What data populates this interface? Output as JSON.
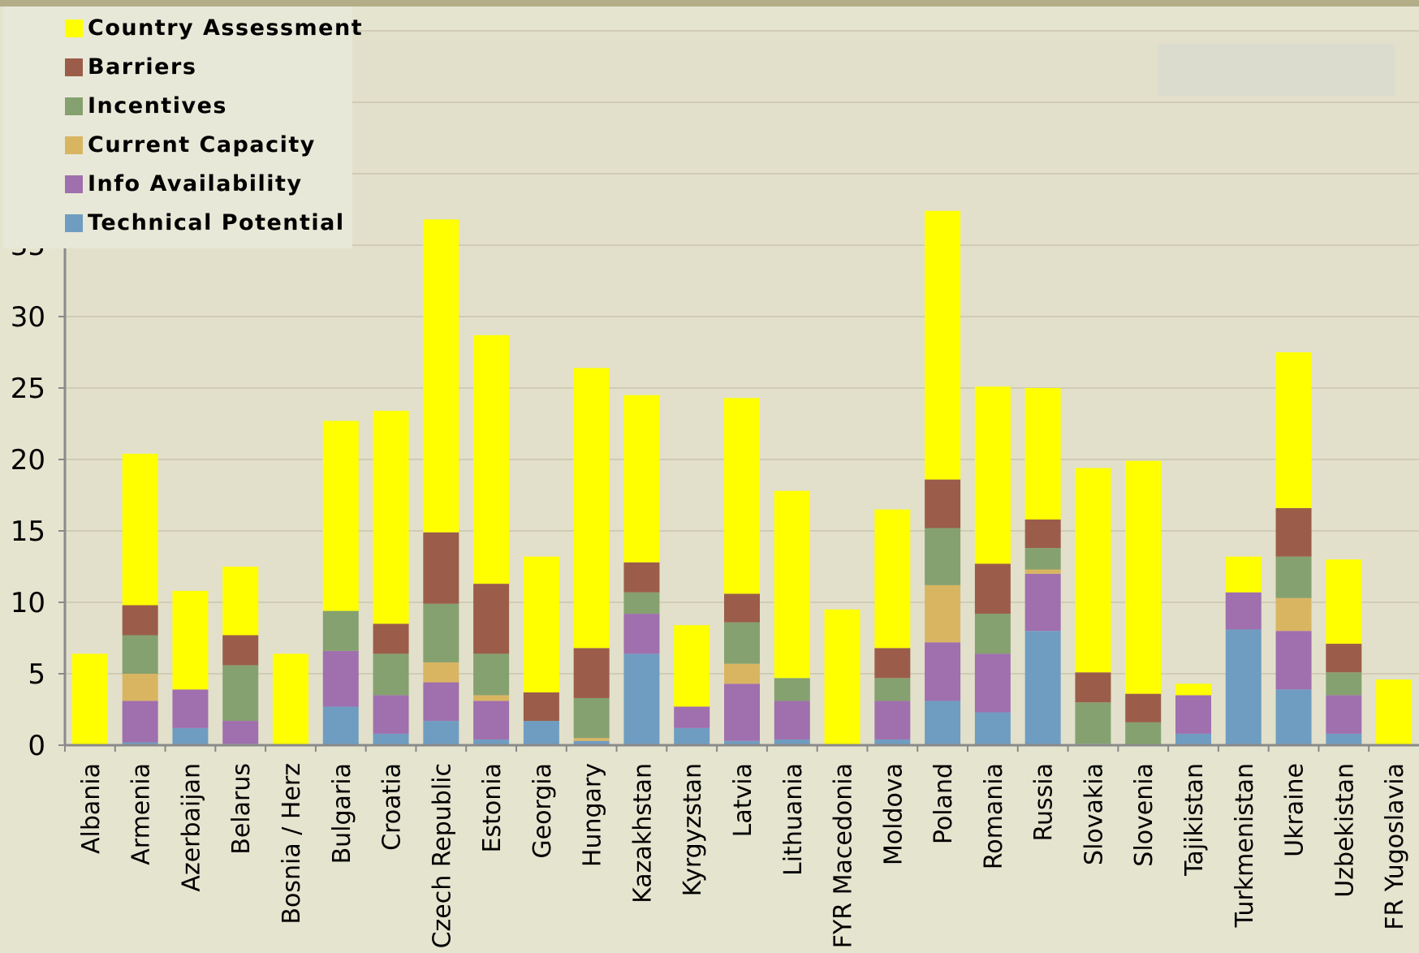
{
  "chart_data": {
    "type": "bar",
    "stacked": true,
    "categories": [
      "Albania",
      "Armenia",
      "Azerbaijan",
      "Belarus",
      "Bosnia / Herz",
      "Bulgaria",
      "Croatia",
      "Czech Republic",
      "Estonia",
      "Georgia",
      "Hungary",
      "Kazakhstan",
      "Kyrgyzstan",
      "Latvia",
      "Lithuania",
      "FYR Macedonia",
      "Moldova",
      "Poland",
      "Romania",
      "Russia",
      "Slovakia",
      "Slovenia",
      "Tajikistan",
      "Turkmenistan",
      "Ukraine",
      "Uzbekistan",
      "FR Yugoslavia"
    ],
    "series": [
      {
        "name": "Technical Potential",
        "color": "#6f9dc1",
        "values": [
          0,
          0.2,
          1.2,
          0.1,
          0,
          2.7,
          0.8,
          1.7,
          0.4,
          1.7,
          0.3,
          6.4,
          1.2,
          0.3,
          0.4,
          0,
          0.4,
          3.1,
          2.3,
          8.0,
          0.1,
          0,
          0.8,
          8.1,
          3.9,
          0.8,
          0
        ]
      },
      {
        "name": "Info Availability",
        "color": "#a06fae",
        "values": [
          0,
          2.9,
          2.7,
          1.6,
          0,
          3.9,
          2.7,
          2.7,
          2.7,
          0,
          0,
          2.8,
          1.5,
          4.0,
          2.7,
          0,
          2.7,
          4.1,
          4.1,
          4.0,
          0,
          0,
          2.7,
          2.6,
          4.1,
          2.7,
          0
        ]
      },
      {
        "name": "Current Capacity",
        "color": "#d9b562",
        "values": [
          0,
          1.9,
          0,
          0,
          0,
          0,
          0,
          1.4,
          0.4,
          0,
          0.2,
          0,
          0,
          1.4,
          0,
          0,
          0,
          4.0,
          0,
          0.3,
          0,
          0,
          0,
          0,
          2.3,
          0,
          0
        ]
      },
      {
        "name": "Incentives",
        "color": "#85a16f",
        "values": [
          0,
          2.7,
          0,
          3.9,
          0,
          2.8,
          2.9,
          4.1,
          2.9,
          0,
          2.8,
          1.5,
          0,
          2.9,
          1.6,
          0,
          1.6,
          4.0,
          2.8,
          1.5,
          2.9,
          1.6,
          0,
          0,
          2.9,
          1.6,
          0
        ]
      },
      {
        "name": "Barriers",
        "color": "#9b5d49",
        "values": [
          0,
          2.1,
          0,
          2.1,
          0,
          0,
          2.1,
          5.0,
          4.9,
          2.0,
          3.5,
          2.1,
          0,
          2.0,
          0,
          0,
          2.1,
          3.4,
          3.5,
          2.0,
          2.1,
          2.0,
          0,
          0,
          3.4,
          2.0,
          0
        ]
      },
      {
        "name": "Country Assessment",
        "color": "#ffff00",
        "values": [
          6.4,
          10.6,
          6.9,
          4.8,
          6.4,
          13.3,
          14.9,
          21.9,
          17.4,
          9.5,
          19.6,
          11.7,
          5.7,
          13.7,
          13.1,
          9.5,
          9.7,
          18.8,
          12.4,
          9.2,
          14.3,
          16.3,
          0.8,
          2.5,
          10.9,
          5.9,
          4.6
        ]
      }
    ],
    "title": "",
    "xlabel": "",
    "ylabel": "",
    "ylim": [
      0,
      50
    ],
    "yticks": [
      0,
      5,
      10,
      15,
      20,
      25,
      30,
      35,
      40,
      45,
      50
    ],
    "grid": true,
    "legend_position": "top-left",
    "legend_order": [
      "Country Assessment",
      "Barriers",
      "Incentives",
      "Current Capacity",
      "Info Availability",
      "Technical Potential"
    ],
    "colors": {
      "plot_bg": "#e2e0ca",
      "outer_bg": "#b3ad88",
      "grid": "#c9c6ad",
      "legend_bg": "#e8e8d8"
    }
  }
}
